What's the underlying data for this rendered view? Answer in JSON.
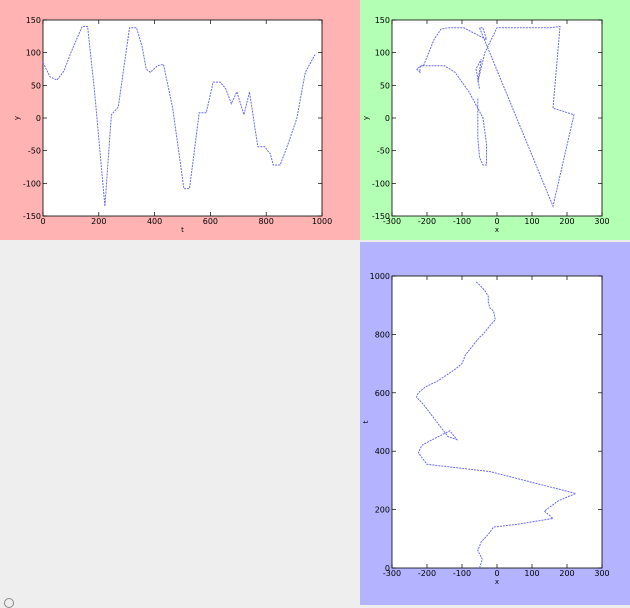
{
  "style": {
    "line_color": "#6a6af0",
    "panel_colors": [
      "#ffb3b3",
      "#b3ffb3",
      "#b3b3ff"
    ],
    "background": "#eeeeee"
  },
  "chart_data": [
    {
      "type": "line",
      "xlabel": "t",
      "ylabel": "y",
      "xlim": [
        0,
        1000
      ],
      "ylim": [
        -150,
        150
      ],
      "xticks": [
        0,
        200,
        400,
        600,
        800,
        1000
      ],
      "yticks": [
        -150,
        -100,
        -50,
        0,
        50,
        100,
        150
      ],
      "grid": false,
      "series": [
        {
          "x": [
            0,
            25,
            50,
            75,
            100,
            140,
            160,
            185,
            222,
            245,
            270,
            310,
            335,
            355,
            370,
            385,
            410,
            432,
            465,
            505,
            525,
            560,
            585,
            610,
            635,
            655,
            675,
            695,
            720,
            740,
            770,
            795,
            805,
            815,
            825,
            850,
            880,
            910,
            940,
            975
          ],
          "y": [
            85,
            63,
            58,
            72,
            100,
            140,
            140,
            40,
            -135,
            5,
            17,
            138,
            138,
            110,
            75,
            70,
            80,
            82,
            15,
            -108,
            -108,
            8,
            8,
            55,
            55,
            45,
            22,
            40,
            5,
            40,
            -44,
            -44,
            -50,
            -55,
            -72,
            -72,
            -38,
            0,
            70,
            97
          ]
        }
      ]
    },
    {
      "type": "line",
      "xlabel": "x",
      "ylabel": "y",
      "xlim": [
        -300,
        300
      ],
      "ylim": [
        -150,
        150
      ],
      "xticks": [
        -300,
        -200,
        -100,
        0,
        100,
        200,
        300
      ],
      "yticks": [
        -150,
        -100,
        -50,
        0,
        50,
        100,
        150
      ],
      "grid": false,
      "series": [
        {
          "x": [
            -50,
            -55,
            -58,
            -60,
            -45,
            -55,
            -35,
            0,
            150,
            180,
            160,
            220,
            160,
            -50,
            -40,
            -30,
            -95,
            -120,
            -140,
            -160,
            -170,
            -180,
            -210,
            -220,
            -220,
            -230,
            -215,
            -200,
            -180,
            -150,
            -120,
            -100,
            -80,
            -70,
            -60,
            -50,
            -40,
            -30,
            -30,
            -40,
            -50,
            -55,
            -55
          ],
          "y": [
            45,
            60,
            70,
            75,
            90,
            55,
            100,
            138,
            138,
            140,
            15,
            5,
            -135,
            138,
            138,
            120,
            138,
            138,
            138,
            136,
            128,
            120,
            80,
            80,
            70,
            75,
            80,
            80,
            80,
            80,
            70,
            55,
            40,
            30,
            20,
            10,
            0,
            -40,
            -72,
            -72,
            -60,
            -30,
            30
          ]
        }
      ]
    },
    {
      "type": "line",
      "xlabel": "x",
      "ylabel": "t",
      "xlim": [
        -300,
        300
      ],
      "ylim": [
        0,
        1000
      ],
      "xticks": [
        -300,
        -200,
        -100,
        0,
        100,
        200,
        300
      ],
      "yticks": [
        0,
        200,
        400,
        600,
        800,
        1000
      ],
      "grid": false,
      "series": [
        {
          "x": [
            -50,
            -42,
            -55,
            -45,
            -25,
            -10,
            60,
            160,
            135,
            175,
            225,
            -20,
            -200,
            -225,
            -215,
            -200,
            -135,
            -115,
            -140,
            -210,
            -230,
            -225,
            -205,
            -170,
            -120,
            -100,
            -90,
            -70,
            -50,
            -40,
            -20,
            -5,
            -10,
            -20,
            -25,
            -25,
            -35,
            -50,
            -60
          ],
          "y": [
            0,
            30,
            60,
            90,
            115,
            140,
            150,
            170,
            195,
            230,
            255,
            330,
            355,
            395,
            420,
            430,
            470,
            440,
            450,
            560,
            585,
            600,
            620,
            640,
            680,
            700,
            730,
            760,
            790,
            800,
            830,
            850,
            880,
            890,
            910,
            930,
            950,
            970,
            980
          ]
        }
      ]
    }
  ]
}
